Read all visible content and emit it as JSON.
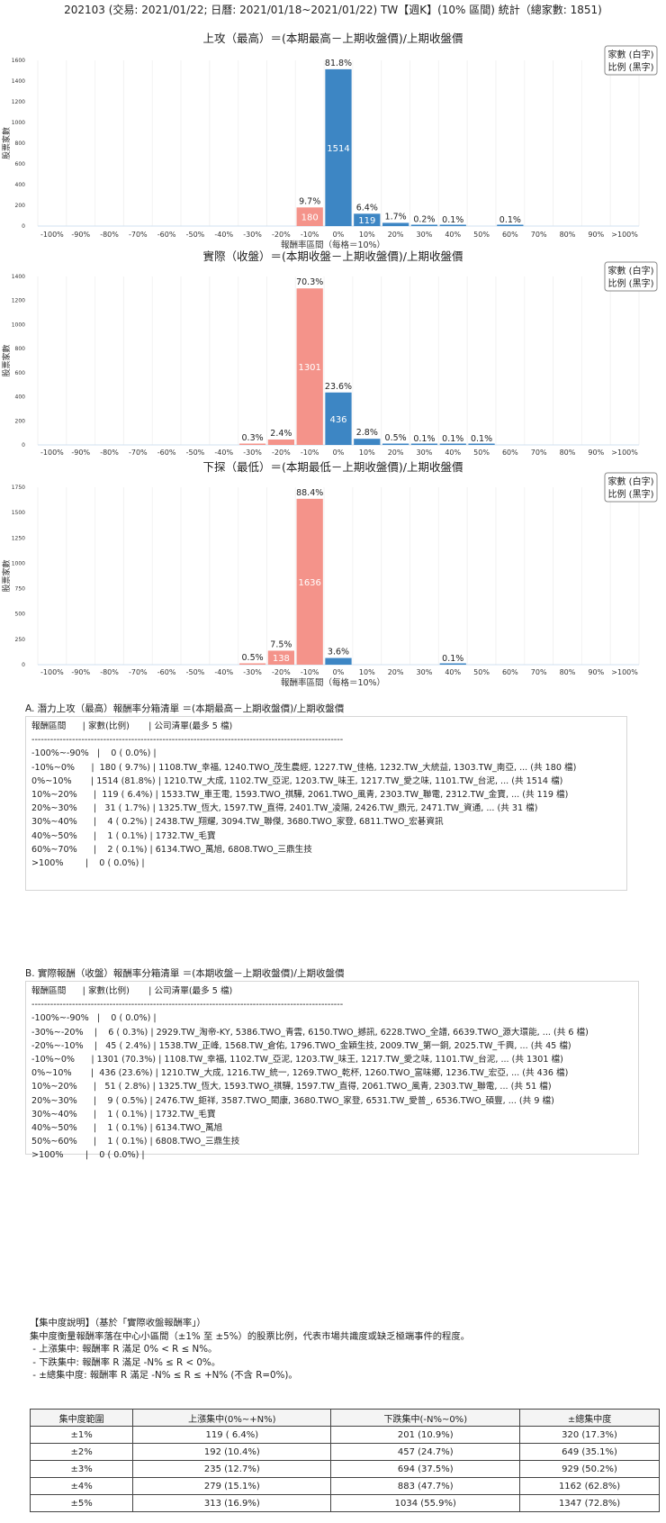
{
  "title": "202103 (交易: 2021/01/22; 日曆: 2021/01/18~2021/01/22) TW【週K】(10% 區間) 統計（總家數: 1851)",
  "legend": [
    "家數 (白字)",
    "比例 (黑字)"
  ],
  "colors": {
    "positive": "#3d86c4",
    "negative": "#f4938a"
  },
  "chart_data": [
    {
      "type": "bar",
      "title": "上攻（最高）＝(本期最高－上期收盤價)/上期收盤價",
      "xlabel": "報酬率區間（每格＝10%）",
      "ylabel": "股票家數",
      "categories": [
        "-100%",
        "-90%",
        "-80%",
        "-70%",
        "-60%",
        "-50%",
        "-40%",
        "-30%",
        "-20%",
        "-10%",
        "0%",
        "10%",
        "20%",
        "30%",
        "40%",
        "50%",
        "60%",
        "70%",
        "80%",
        "90%",
        ">100%"
      ],
      "values": [
        0,
        0,
        0,
        0,
        0,
        0,
        0,
        0,
        0,
        180,
        1514,
        119,
        31,
        4,
        1,
        0,
        2,
        0,
        0,
        0,
        0
      ],
      "percent_labels": [
        "",
        "",
        "",
        "",
        "",
        "",
        "",
        "",
        "",
        "9.7%",
        "81.8%",
        "6.4%",
        "1.7%",
        "0.2%",
        "0.1%",
        "",
        "0.1%",
        "",
        "",
        "",
        ""
      ],
      "ylim": [
        0,
        1600
      ],
      "yticks": [
        0,
        200,
        400,
        600,
        800,
        1000,
        1200,
        1400,
        1600
      ]
    },
    {
      "type": "bar",
      "title": "實際（收盤）＝(本期收盤－上期收盤價)/上期收盤價",
      "xlabel": "",
      "ylabel": "股票家數",
      "categories": [
        "-100%",
        "-90%",
        "-80%",
        "-70%",
        "-60%",
        "-50%",
        "-40%",
        "-30%",
        "-20%",
        "-10%",
        "0%",
        "10%",
        "20%",
        "30%",
        "40%",
        "50%",
        "60%",
        "70%",
        "80%",
        "90%",
        ">100%"
      ],
      "values": [
        0,
        0,
        0,
        0,
        0,
        0,
        0,
        6,
        45,
        1301,
        436,
        51,
        9,
        1,
        1,
        1,
        0,
        0,
        0,
        0,
        0
      ],
      "percent_labels": [
        "",
        "",
        "",
        "",
        "",
        "",
        "",
        "0.3%",
        "2.4%",
        "70.3%",
        "23.6%",
        "2.8%",
        "0.5%",
        "0.1%",
        "0.1%",
        "0.1%",
        "",
        "",
        "",
        "",
        ""
      ],
      "ylim": [
        0,
        1400
      ],
      "yticks": [
        0,
        200,
        400,
        600,
        800,
        1000,
        1200,
        1400
      ]
    },
    {
      "type": "bar",
      "title": "下探（最低）＝(本期最低－上期收盤價)/上期收盤價",
      "xlabel": "報酬率區間（每格＝10%）",
      "ylabel": "股票家數",
      "categories": [
        "-100%",
        "-90%",
        "-80%",
        "-70%",
        "-60%",
        "-50%",
        "-40%",
        "-30%",
        "-20%",
        "-10%",
        "0%",
        "10%",
        "20%",
        "30%",
        "40%",
        "50%",
        "60%",
        "70%",
        "80%",
        "90%",
        ">100%"
      ],
      "values": [
        0,
        0,
        0,
        0,
        0,
        0,
        0,
        10,
        138,
        1636,
        66,
        0,
        0,
        0,
        1,
        0,
        0,
        0,
        0,
        0,
        0
      ],
      "percent_labels": [
        "",
        "",
        "",
        "",
        "",
        "",
        "",
        "0.5%",
        "7.5%",
        "88.4%",
        "3.6%",
        "",
        "",
        "",
        "0.1%",
        "",
        "",
        "",
        "",
        "",
        ""
      ],
      "ylim": [
        0,
        1750
      ],
      "yticks": [
        0,
        250,
        500,
        750,
        1000,
        1250,
        1500,
        1750
      ]
    }
  ],
  "list_a": {
    "title": "A. 潛力上攻（最高）報酬率分箱清單 ＝(本期最高－上期收盤價)/上期收盤價",
    "lines": [
      "報酬區間      | 家數(比例)       | 公司清單(最多 5 檔)",
      "----------------------------------------------------------------------------------------------------",
      "-100%~-90%   |    0 ( 0.0%) |",
      "-10%~0%      |  180 ( 9.7%) | 1108.TW_幸福, 1240.TWO_茂生農經, 1227.TW_佳格, 1232.TW_大統益, 1303.TW_南亞, ... (共 180 檔)",
      "0%~10%       | 1514 (81.8%) | 1210.TW_大成, 1102.TW_亞泥, 1203.TW_味王, 1217.TW_愛之味, 1101.TW_台泥, ... (共 1514 檔)",
      "10%~20%      |  119 ( 6.4%) | 1533.TW_車王電, 1593.TWO_祺驊, 2061.TWO_風青, 2303.TW_聯電, 2312.TW_金寶, ... (共 119 檔)",
      "20%~30%      |   31 ( 1.7%) | 1325.TW_恆大, 1597.TW_直得, 2401.TW_凌陽, 2426.TW_鼎元, 2471.TW_資通, ... (共 31 檔)",
      "30%~40%      |    4 ( 0.2%) | 2438.TW_翔耀, 3094.TW_聯傑, 3680.TWO_家登, 6811.TWO_宏碁資訊",
      "40%~50%      |    1 ( 0.1%) | 1732.TW_毛寶",
      "60%~70%      |    2 ( 0.1%) | 6134.TWO_萬旭, 6808.TWO_三鼎生技",
      ">100%        |    0 ( 0.0%) |"
    ]
  },
  "list_b": {
    "title": "B. 實際報酬（收盤）報酬率分箱清單 ＝(本期收盤－上期收盤價)/上期收盤價",
    "lines": [
      "報酬區間      | 家數(比例)       | 公司清單(最多 5 檔)",
      "----------------------------------------------------------------------------------------------------",
      "-100%~-90%   |    0 ( 0.0%) |",
      "-30%~-20%    |    6 ( 0.3%) | 2929.TW_淘帝-KY, 5386.TWO_青雲, 6150.TWO_撼訊, 6228.TWO_全譜, 6639.TWO_源大環能, ... (共 6 檔)",
      "-20%~-10%    |   45 ( 2.4%) | 1538.TW_正峰, 1568.TW_倉佑, 1796.TWO_金穎生技, 2009.TW_第一銅, 2025.TW_千興, ... (共 45 檔)",
      "-10%~0%      | 1301 (70.3%) | 1108.TW_幸福, 1102.TW_亞泥, 1203.TW_味王, 1217.TW_愛之味, 1101.TW_台泥, ... (共 1301 檔)",
      "0%~10%       |  436 (23.6%) | 1210.TW_大成, 1216.TW_統一, 1269.TWO_乾杯, 1260.TWO_富味鄉, 1236.TW_宏亞, ... (共 436 檔)",
      "10%~20%      |   51 ( 2.8%) | 1325.TW_恆大, 1593.TWO_祺驊, 1597.TW_直得, 2061.TWO_風青, 2303.TW_聯電, ... (共 51 檔)",
      "20%~30%      |    9 ( 0.5%) | 2476.TW_鉅祥, 3587.TWO_閎康, 3680.TWO_家登, 6531.TW_愛普_, 6536.TWO_碩豐, ... (共 9 檔)",
      "30%~40%      |    1 ( 0.1%) | 1732.TW_毛寶",
      "40%~50%      |    1 ( 0.1%) | 6134.TWO_萬旭",
      "50%~60%      |    1 ( 0.1%) | 6808.TWO_三鼎生技",
      ">100%        |    0 ( 0.0%) |"
    ]
  },
  "concentration": {
    "lines": [
      "【集中度說明】（基於「實際收盤報酬率」）",
      "集中度衡量報酬率落在中心小區間（±1% 至 ±5%）的股票比例，代表市場共識度或缺乏極端事件的程度。",
      " - 上漲集中: 報酬率 R 滿足 0% < R ≤ N%。",
      " - 下跌集中: 報酬率 R 滿足 -N% ≤ R < 0%。",
      " - ±總集中度: 報酬率 R 滿足 -N% ≤ R ≤ +N% (不含 R=0%)。"
    ],
    "headers": [
      "集中度範圍",
      "上漲集中(0%~+N%)",
      "下跌集中(-N%~0%)",
      "±總集中度"
    ],
    "rows": [
      [
        "±1%",
        "119 ( 6.4%)",
        "201 (10.9%)",
        "320 (17.3%)"
      ],
      [
        "±2%",
        "192 (10.4%)",
        "457 (24.7%)",
        "649 (35.1%)"
      ],
      [
        "±3%",
        "235 (12.7%)",
        "694 (37.5%)",
        "929 (50.2%)"
      ],
      [
        "±4%",
        "279 (15.1%)",
        "883 (47.7%)",
        "1162 (62.8%)"
      ],
      [
        "±5%",
        "313 (16.9%)",
        "1034 (55.9%)",
        "1347 (72.8%)"
      ]
    ]
  }
}
